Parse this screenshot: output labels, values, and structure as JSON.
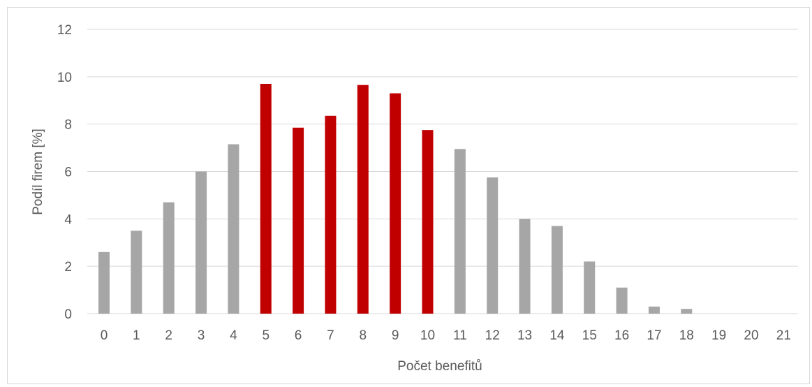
{
  "chart_data": {
    "type": "bar",
    "xlabel": "Počet benefitů",
    "ylabel": "Podíl firem [%]",
    "ylim": [
      0,
      12
    ],
    "yticks": [
      0,
      2,
      4,
      6,
      8,
      10,
      12
    ],
    "grid": true,
    "categories": [
      "0",
      "1",
      "2",
      "3",
      "4",
      "5",
      "6",
      "7",
      "8",
      "9",
      "10",
      "11",
      "12",
      "13",
      "14",
      "15",
      "16",
      "17",
      "18",
      "19",
      "20",
      "21"
    ],
    "values": [
      2.6,
      3.5,
      4.7,
      6.0,
      7.15,
      9.7,
      7.85,
      8.35,
      9.65,
      9.3,
      7.75,
      6.95,
      5.75,
      4.0,
      3.7,
      2.2,
      1.1,
      0.3,
      0.2,
      0,
      0,
      0
    ],
    "highlighted_categories": [
      "5",
      "6",
      "7",
      "8",
      "9",
      "10"
    ],
    "colors": {
      "default": "#a6a6a6",
      "highlight": "#c00000",
      "grid": "#d9d9d9",
      "text": "#595959"
    }
  }
}
